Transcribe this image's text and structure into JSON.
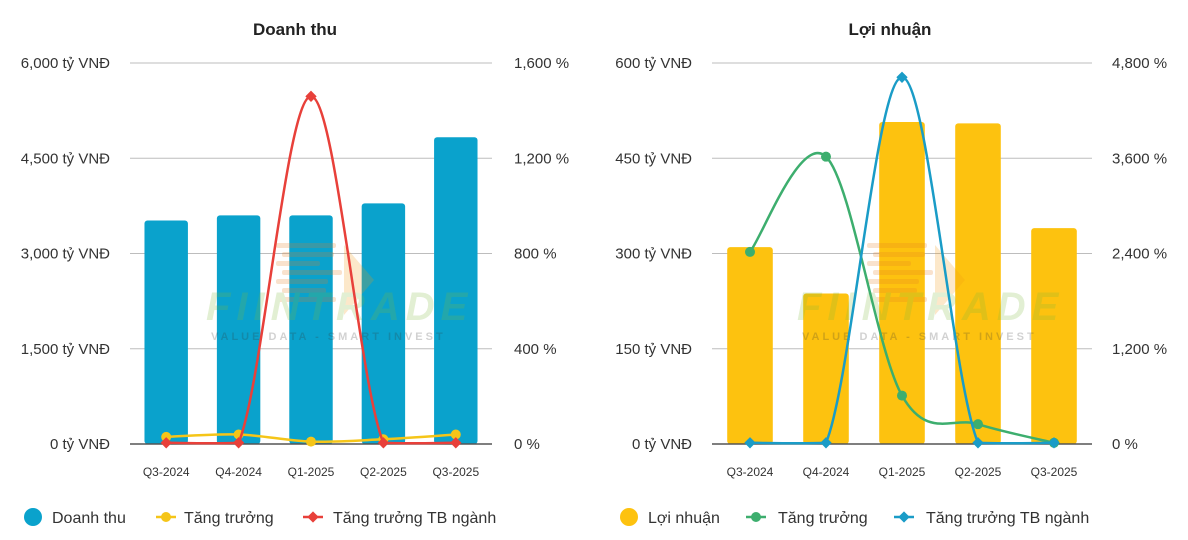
{
  "chart_data": [
    {
      "type": "bar",
      "title": "Doanh thu",
      "categories": [
        "Q3-2024",
        "Q4-2024",
        "Q1-2025",
        "Q2-2025",
        "Q3-2025"
      ],
      "bar_series": {
        "name": "Doanh thu",
        "values": [
          3520,
          3600,
          3600,
          3790,
          4830
        ],
        "color": "#0aa2cc"
      },
      "line_series": [
        {
          "name": "Tăng trưởng",
          "values": [
            30,
            40,
            10,
            20,
            40
          ],
          "color": "#f5c518"
        },
        {
          "name": "Tăng trưởng TB ngành",
          "values": [
            5,
            5,
            1460,
            5,
            5
          ],
          "color": "#e8403a"
        }
      ],
      "ylim_left": [
        0,
        6000
      ],
      "ylim_right": [
        0,
        1600
      ],
      "yticks_left": [
        "0 tỷ VNĐ",
        "1,500 tỷ VNĐ",
        "3,000 tỷ VNĐ",
        "4,500 tỷ VNĐ",
        "6,000 tỷ VNĐ"
      ],
      "yticks_right": [
        "0 %",
        "400 %",
        "800 %",
        "1,200 %",
        "1,600 %"
      ],
      "legend": [
        "Doanh thu",
        "Tăng trưởng",
        "Tăng trưởng TB ngành"
      ],
      "watermark": "FIINTRADE VALUE DATA - SMART INVEST"
    },
    {
      "type": "bar",
      "title": "Lợi nhuận",
      "categories": [
        "Q3-2024",
        "Q4-2024",
        "Q1-2025",
        "Q2-2025",
        "Q3-2025"
      ],
      "bar_series": {
        "name": "Lợi nhuận",
        "values": [
          310,
          237,
          507,
          505,
          340
        ],
        "color": "#fdc20f"
      },
      "line_series": [
        {
          "name": "Tăng trưởng",
          "values": [
            2420,
            3620,
            610,
            250,
            15
          ],
          "color": "#3dae6e"
        },
        {
          "name": "Tăng trưởng TB ngành",
          "values": [
            15,
            15,
            4620,
            15,
            15
          ],
          "color": "#1a9cc7"
        }
      ],
      "ylim_left": [
        0,
        600
      ],
      "ylim_right": [
        0,
        4800
      ],
      "yticks_left": [
        "0 tỷ VNĐ",
        "150 tỷ VNĐ",
        "300 tỷ VNĐ",
        "450 tỷ VNĐ",
        "600 tỷ VNĐ"
      ],
      "yticks_right": [
        "0 %",
        "1,200 %",
        "2,400 %",
        "3,600 %",
        "4,800 %"
      ],
      "legend": [
        "Lợi nhuận",
        "Tăng trưởng",
        "Tăng trưởng TB ngành"
      ],
      "watermark": "FIINTRADE VALUE DATA - SMART INVEST"
    }
  ]
}
